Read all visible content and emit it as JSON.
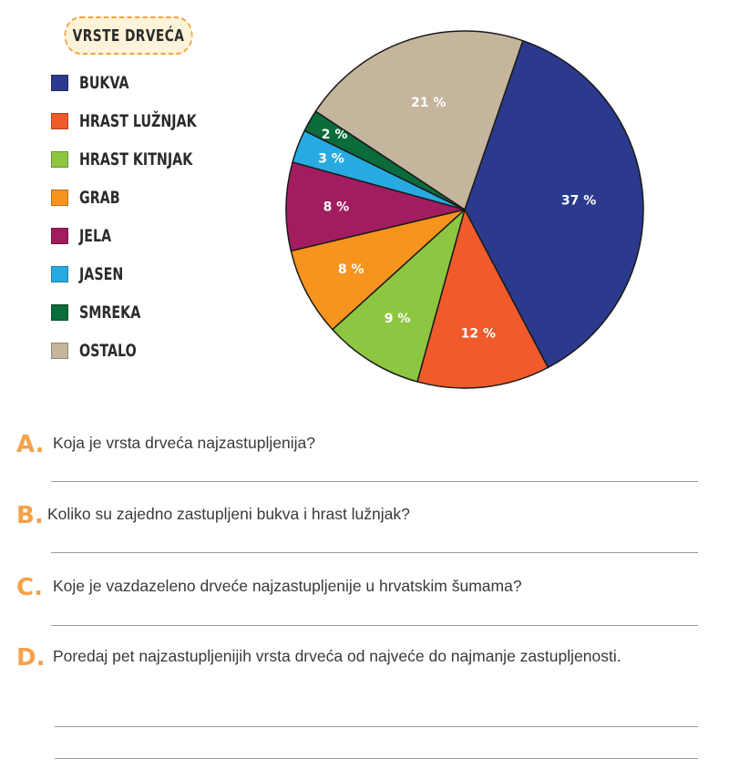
{
  "legend_title": "VRSTE DRVEĆA",
  "chart_data": {
    "type": "pie",
    "title": "VRSTE DRVEĆA",
    "slices": [
      {
        "label": "BUKVA",
        "value": 37,
        "value_label": "37 %",
        "color": "#2b3a8c"
      },
      {
        "label": "HRAST LUŽNJAK",
        "value": 12,
        "value_label": "12 %",
        "color": "#f15a2b"
      },
      {
        "label": "HRAST KITNJAK",
        "value": 9,
        "value_label": "9 %",
        "color": "#8dc641"
      },
      {
        "label": "GRAB",
        "value": 8,
        "value_label": "8 %",
        "color": "#f7941d"
      },
      {
        "label": "JELA",
        "value": 8,
        "value_label": "8 %",
        "color": "#a21c60"
      },
      {
        "label": "JASEN",
        "value": 3,
        "value_label": "3 %",
        "color": "#27aae1"
      },
      {
        "label": "SMREKA",
        "value": 2,
        "value_label": "2 %",
        "color": "#0b6b3a"
      },
      {
        "label": "OSTALO",
        "value": 21,
        "value_label": "21 %",
        "color": "#c4b59c"
      }
    ]
  },
  "questions": [
    {
      "letter": "A",
      "text": "Koja je vrsta drveća najzastupljenija?"
    },
    {
      "letter": "B",
      "text": "Koliko su zajedno zastupljeni bukva i hrast lužnjak?"
    },
    {
      "letter": "C",
      "text": "Koje je vazdazeleno drveće najzastupljenije u hrvatskim šumama?"
    },
    {
      "letter": "D",
      "text": "Poredaj pet najzastupljenijih vrsta drveća od najveće do najmanje zastupljenosti."
    }
  ]
}
